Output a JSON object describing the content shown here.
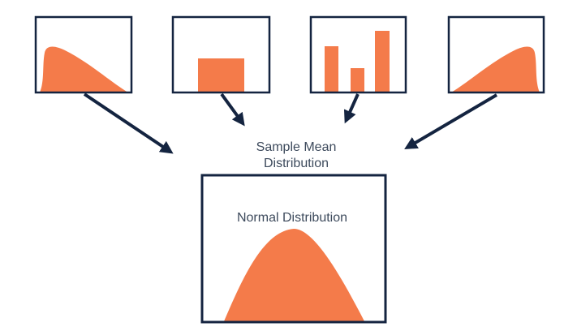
{
  "colors": {
    "fill": "#f47b4a",
    "frame": "#142440",
    "text": "#3d4a5c"
  },
  "sources": [
    {
      "shape": "right-skewed"
    },
    {
      "shape": "uniform"
    },
    {
      "shape": "discrete-bars"
    },
    {
      "shape": "left-skewed"
    }
  ],
  "center_label": {
    "line1": "Sample Mean",
    "line2": "Distribution"
  },
  "result": {
    "title": "Normal Distribution",
    "shape": "bell-curve"
  }
}
